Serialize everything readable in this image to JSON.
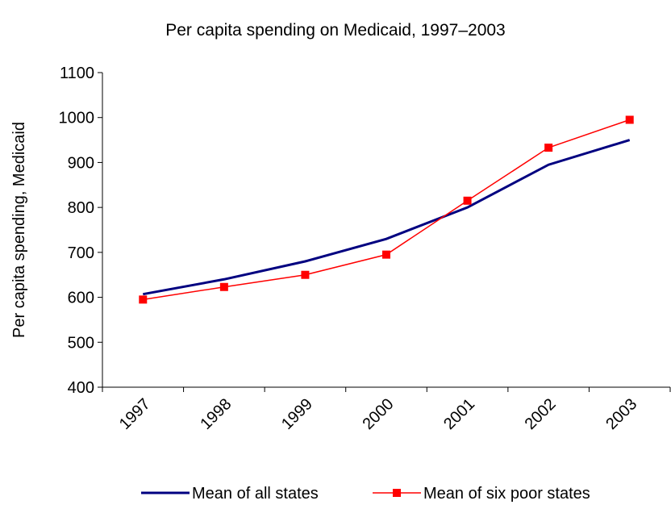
{
  "chart_data": {
    "type": "line",
    "title": "Per capita spending on Medicaid, 1997–2003",
    "y_label": "Per capita spending, Medicaid",
    "categories": [
      "1997",
      "1998",
      "1999",
      "2000",
      "2001",
      "2002",
      "2003"
    ],
    "series": [
      {
        "name": "Mean of all states",
        "color": "#000080",
        "marker": false,
        "values": [
          607,
          640,
          680,
          730,
          800,
          895,
          950
        ]
      },
      {
        "name": "Mean of six poor states",
        "color": "#ff0000",
        "marker": true,
        "values": [
          595,
          623,
          650,
          695,
          815,
          933,
          995
        ]
      }
    ],
    "ylim": [
      400,
      1100
    ],
    "yticks": [
      400,
      500,
      600,
      700,
      800,
      900,
      1000,
      1100
    ],
    "grid": false,
    "legend": "bottom"
  }
}
